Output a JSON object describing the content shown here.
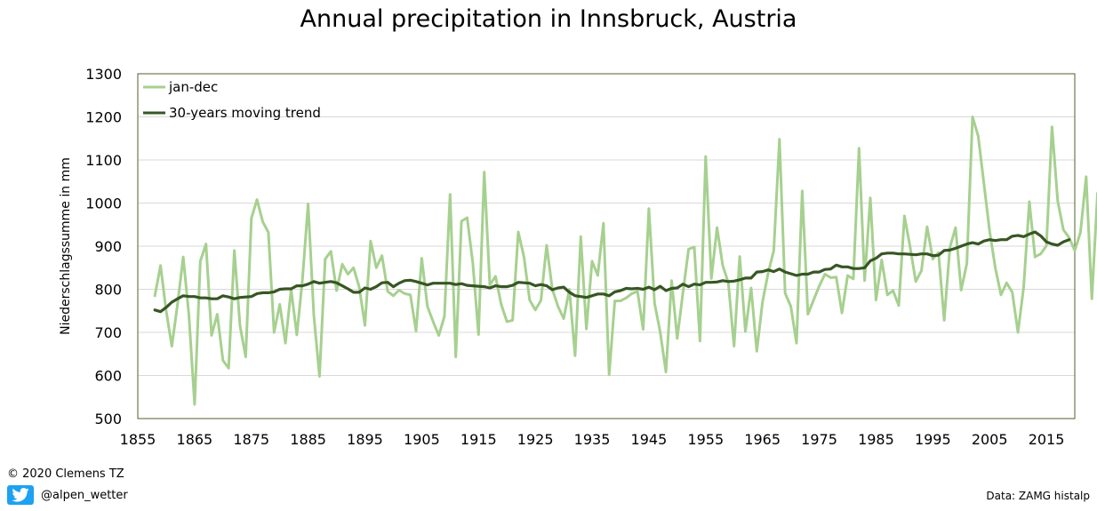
{
  "header": {
    "title": "Annual precipitation in Innsbruck, Austria"
  },
  "footer": {
    "copyright": "© 2020 Clemens TZ",
    "twitter_handle": "@alpen_wetter",
    "source": "Data: ZAMG histalp",
    "twitter_icon": "twitter-bird-icon"
  },
  "colors": {
    "annual": "#a6d08f",
    "trend": "#375623",
    "frame": "#4f6228",
    "grid": "#d9d9d9"
  },
  "chart_data": {
    "type": "line",
    "title": "Annual precipitation in Innsbruck, Austria",
    "xlabel": "",
    "ylabel": "Niederschlagssumme in mm",
    "xlim": [
      1855,
      2020
    ],
    "ylim": [
      500,
      1300
    ],
    "x_ticks": [
      1855,
      1865,
      1875,
      1885,
      1895,
      1905,
      1915,
      1925,
      1935,
      1945,
      1955,
      1965,
      1975,
      1985,
      1995,
      2005,
      2015
    ],
    "y_ticks": [
      500,
      600,
      700,
      800,
      900,
      1000,
      1100,
      1200,
      1300
    ],
    "grid": "horizontal",
    "legend_position": "top-left",
    "series": [
      {
        "name": "jan-dec",
        "x_start": 1858,
        "values": [
          785,
          855,
          750,
          668,
          765,
          875,
          740,
          533,
          865,
          905,
          693,
          742,
          635,
          617,
          890,
          715,
          643,
          965,
          1008,
          957,
          932,
          700,
          765,
          675,
          800,
          694,
          822,
          998,
          740,
          598,
          870,
          888,
          797,
          858,
          835,
          850,
          805,
          716,
          912,
          850,
          878,
          795,
          785,
          798,
          790,
          787,
          703,
          872,
          760,
          725,
          693,
          737,
          1020,
          643,
          958,
          966,
          860,
          695,
          1072,
          810,
          830,
          765,
          725,
          728,
          933,
          875,
          775,
          752,
          774,
          902,
          800,
          760,
          732,
          800,
          646,
          922,
          708,
          865,
          832,
          953,
          602,
          773,
          773,
          780,
          790,
          795,
          707,
          987,
          768,
          700,
          608,
          820,
          686,
          792,
          893,
          898,
          680,
          1108,
          825,
          943,
          855,
          815,
          668,
          876,
          702,
          803,
          656,
          770,
          838,
          890,
          1148,
          791,
          760,
          675,
          1028,
          742,
          775,
          807,
          835,
          827,
          828,
          745,
          832,
          824,
          1127,
          820,
          1012,
          775,
          868,
          787,
          797,
          762,
          970,
          898,
          818,
          843,
          945,
          870,
          885,
          728,
          897,
          943,
          798,
          860,
          1200,
          1155,
          1045,
          935,
          850,
          787,
          815,
          793,
          700,
          805,
          1003,
          875,
          882,
          901,
          1177,
          1005,
          938,
          920,
          890,
          932,
          1061,
          778,
          1023
        ]
      },
      {
        "name": "30-years moving trend",
        "x_start": 1858,
        "values": [
          752,
          748,
          758,
          770,
          778,
          785,
          783,
          783,
          780,
          780,
          778,
          778,
          785,
          782,
          778,
          781,
          782,
          783,
          790,
          792,
          792,
          794,
          800,
          801,
          801,
          808,
          808,
          812,
          818,
          814,
          816,
          818,
          815,
          808,
          801,
          793,
          793,
          803,
          800,
          806,
          815,
          816,
          806,
          814,
          820,
          821,
          818,
          814,
          810,
          814,
          814,
          814,
          814,
          811,
          813,
          809,
          808,
          807,
          806,
          803,
          808,
          806,
          806,
          809,
          816,
          815,
          814,
          808,
          811,
          808,
          799,
          803,
          805,
          793,
          785,
          783,
          781,
          785,
          789,
          789,
          785,
          794,
          797,
          802,
          801,
          802,
          800,
          805,
          799,
          807,
          797,
          802,
          803,
          812,
          806,
          812,
          810,
          816,
          816,
          817,
          820,
          818,
          819,
          822,
          826,
          826,
          840,
          841,
          845,
          841,
          847,
          840,
          836,
          832,
          835,
          835,
          840,
          840,
          846,
          847,
          856,
          852,
          852,
          848,
          848,
          850,
          866,
          872,
          882,
          884,
          884,
          882,
          882,
          881,
          880,
          882,
          882,
          878,
          879,
          890,
          891,
          895,
          900,
          905,
          908,
          905,
          912,
          915,
          913,
          915,
          915,
          923,
          925,
          922,
          928,
          933,
          924,
          910,
          905,
          902,
          910,
          915
        ]
      }
    ]
  }
}
